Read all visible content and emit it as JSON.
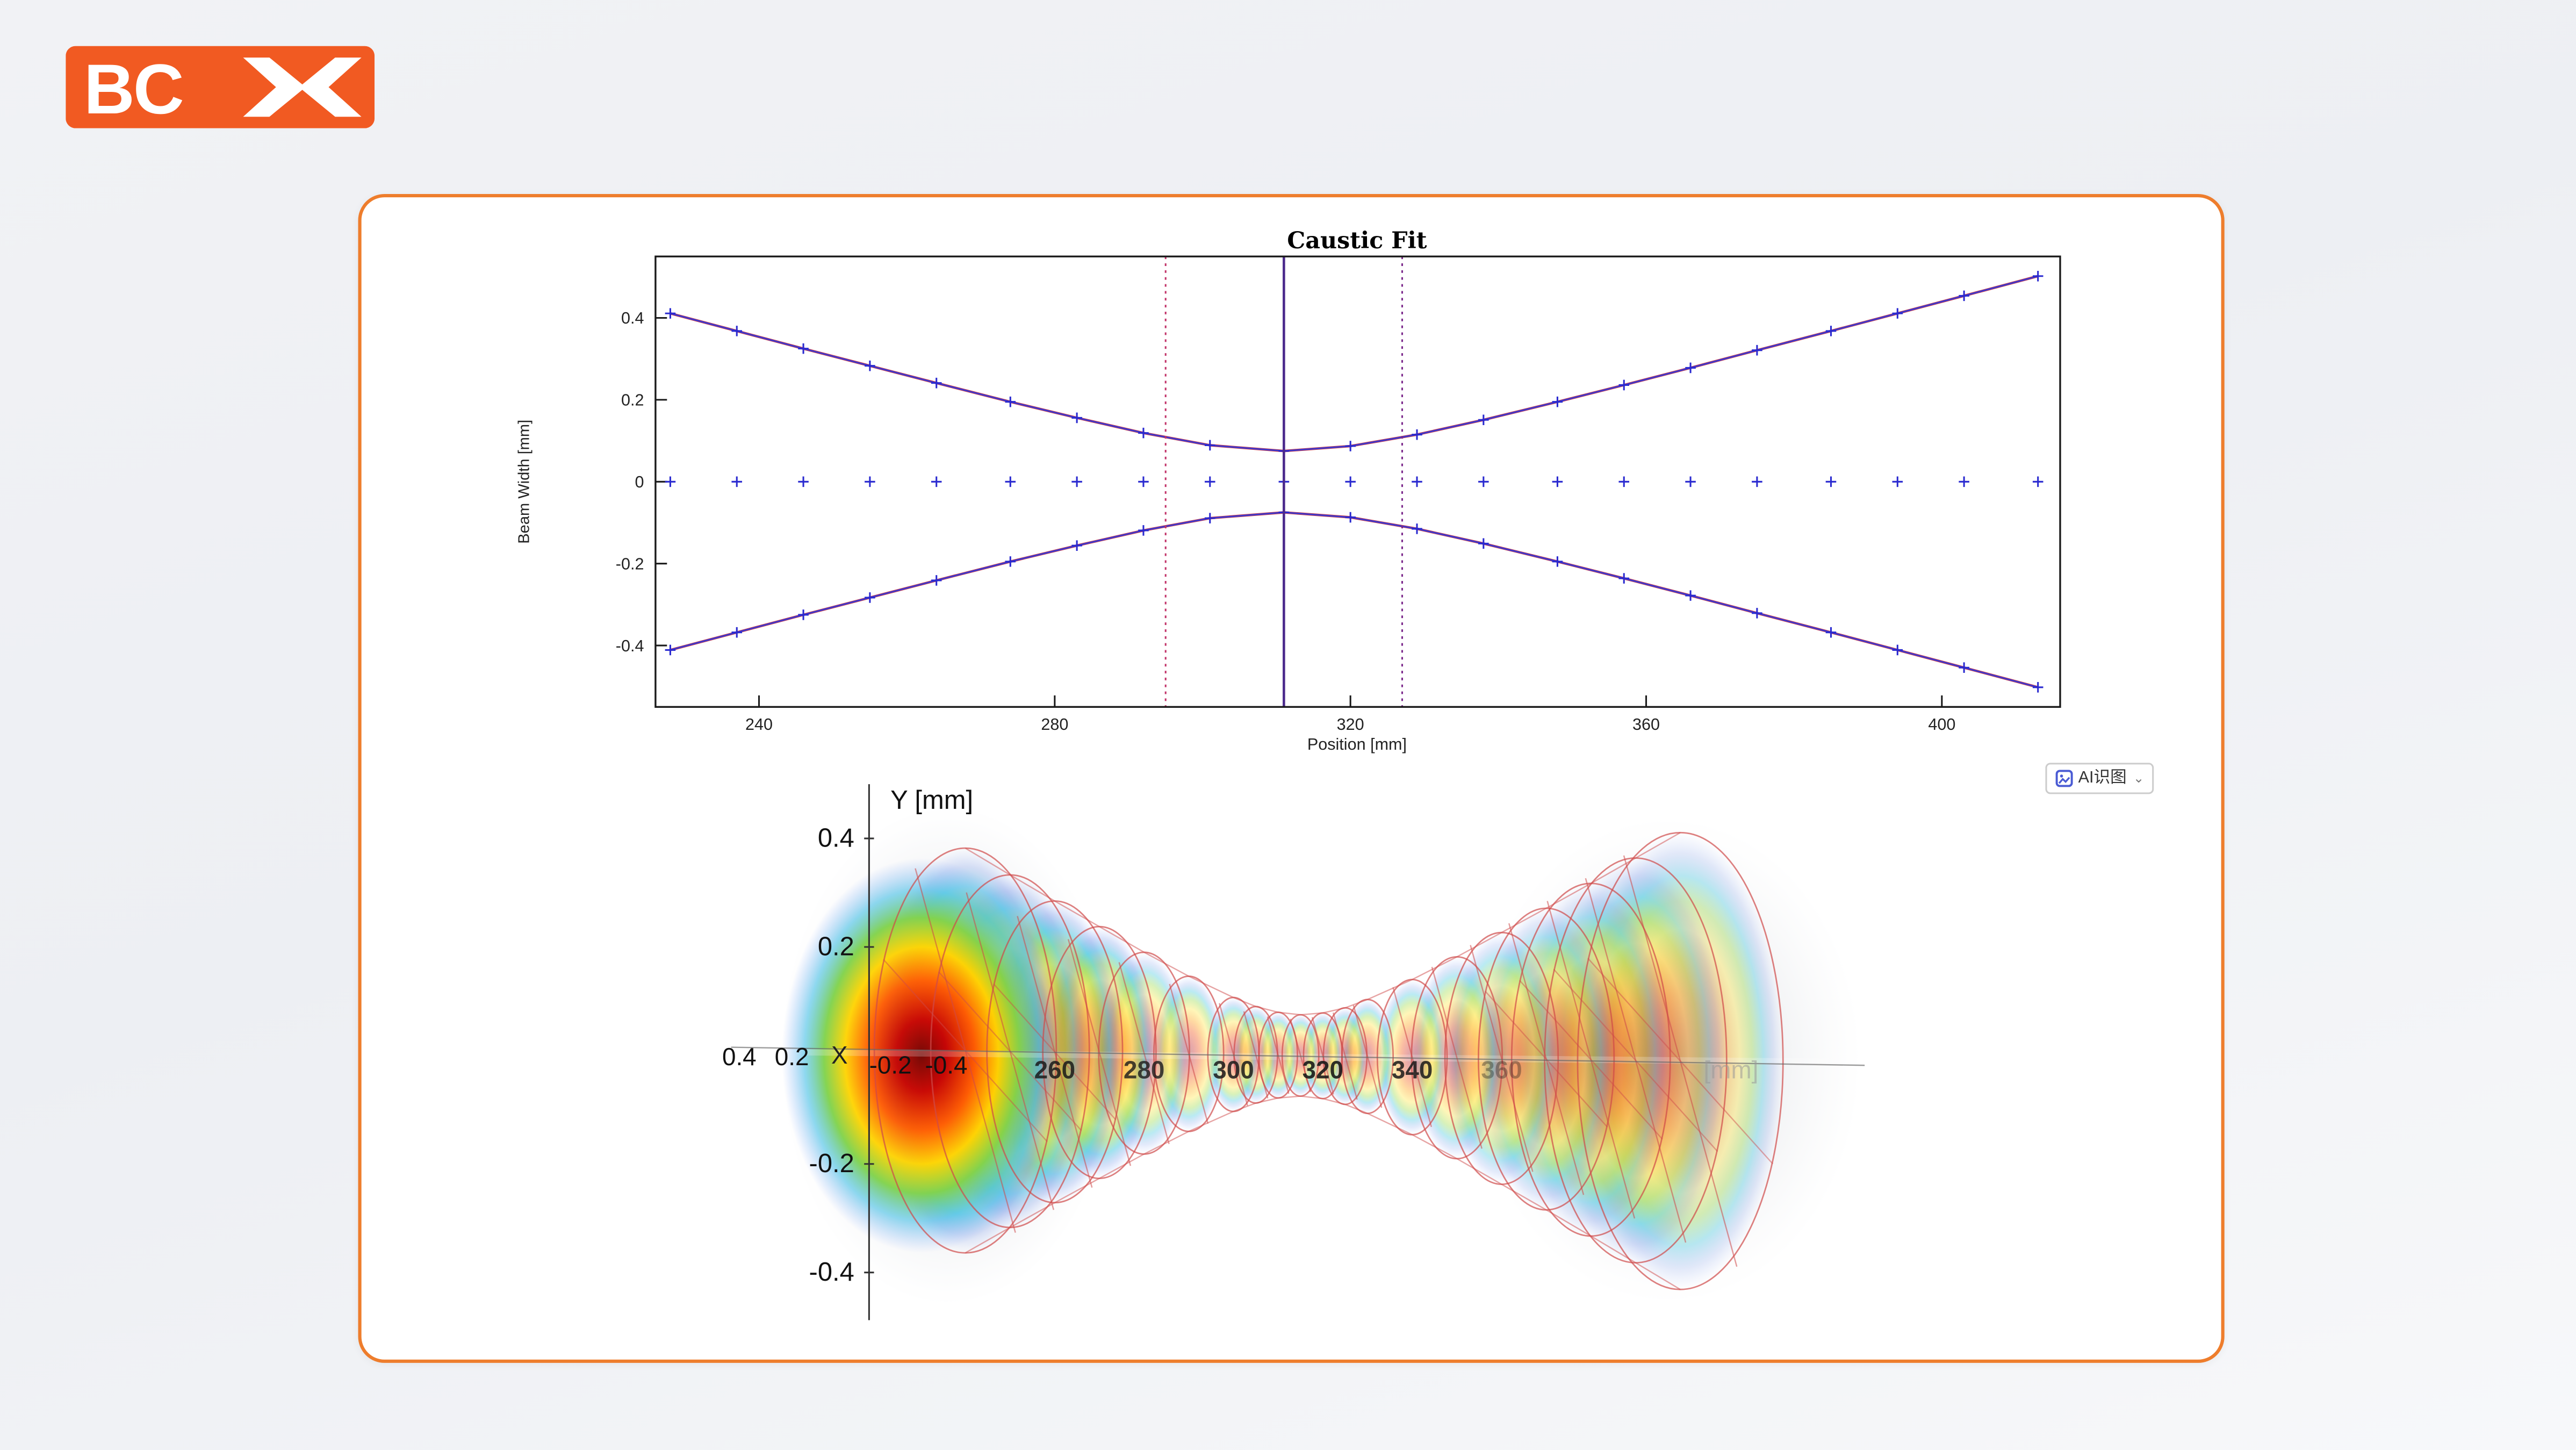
{
  "page": {
    "background_top": "#f1f2f5",
    "background_bottom": "#f7f8fa"
  },
  "logo": {
    "text": "BC",
    "mark": "double-chevron-x",
    "bg_color": "#F15A22",
    "fg_color": "#FFFFFF"
  },
  "card": {
    "border_color": "#EE7D2C"
  },
  "ai_tool_button": {
    "label": "AI识图",
    "caret": "⌄"
  },
  "chart_data": [
    {
      "type": "line",
      "title": "Caustic Fit",
      "xlabel": "Position [mm]",
      "ylabel": "Beam Width [mm]",
      "xlim": [
        226,
        416
      ],
      "ylim": [
        -0.55,
        0.55
      ],
      "x_ticks": [
        240,
        280,
        320,
        360,
        400
      ],
      "y_ticks": [
        0.4,
        0.2,
        0,
        -0.2,
        -0.4
      ],
      "grid": false,
      "legend": "none",
      "line_color": "#3a3ad0",
      "fit_color": "#c22033",
      "marker_color": "#2a2ad0",
      "marker": "+",
      "series": [
        {
          "name": "upper-beam-edge",
          "draw_line": true,
          "x": [
            228,
            237,
            246,
            255,
            264,
            274,
            283,
            292,
            301,
            311,
            320,
            329,
            338,
            348,
            357,
            366,
            375,
            385,
            394,
            403,
            413
          ],
          "y": [
            0.411,
            0.368,
            0.325,
            0.283,
            0.241,
            0.195,
            0.156,
            0.119,
            0.089,
            0.075,
            0.087,
            0.115,
            0.151,
            0.195,
            0.236,
            0.278,
            0.321,
            0.368,
            0.411,
            0.454,
            0.502
          ]
        },
        {
          "name": "lower-beam-edge",
          "draw_line": true,
          "x": [
            228,
            237,
            246,
            255,
            264,
            274,
            283,
            292,
            301,
            311,
            320,
            329,
            338,
            348,
            357,
            366,
            375,
            385,
            394,
            403,
            413
          ],
          "y": [
            -0.411,
            -0.368,
            -0.325,
            -0.283,
            -0.241,
            -0.195,
            -0.156,
            -0.119,
            -0.089,
            -0.075,
            -0.087,
            -0.115,
            -0.151,
            -0.195,
            -0.236,
            -0.278,
            -0.321,
            -0.368,
            -0.411,
            -0.454,
            -0.502
          ]
        },
        {
          "name": "beam-axis",
          "draw_line": false,
          "x": [
            228,
            237,
            246,
            255,
            264,
            274,
            283,
            292,
            301,
            311,
            320,
            329,
            338,
            348,
            357,
            366,
            375,
            385,
            394,
            403,
            413
          ],
          "y": [
            0,
            0,
            0,
            0,
            0,
            0,
            0,
            0,
            0,
            0,
            0,
            0,
            0,
            0,
            0,
            0,
            0,
            0,
            0,
            0,
            0
          ]
        }
      ],
      "vlines": [
        {
          "x": 295,
          "style": "dotted",
          "color": "#c2356a"
        },
        {
          "x": 311,
          "style": "solid",
          "color": "#4b2a8c"
        },
        {
          "x": 327,
          "style": "dotted",
          "color": "#7c2a8c"
        }
      ]
    },
    {
      "type": "area",
      "y_axis_label": "Y [mm]",
      "x_axis_label": "X",
      "z_unit": "[mm]",
      "y_ticks": [
        0.4,
        0.2,
        -0.2,
        -0.4
      ],
      "x_ticks": [
        0.4,
        0.2,
        -0.2,
        -0.4
      ],
      "z_ticks": [
        260,
        280,
        300,
        320,
        340,
        360
      ],
      "waist_position_mm": 315,
      "waist_radius_mm": 0.075,
      "slices": {
        "z": [
          240,
          250,
          260,
          270,
          280,
          290,
          300,
          305,
          310,
          315,
          320,
          325,
          330,
          340,
          350,
          360,
          370,
          380,
          390,
          400
        ],
        "w": [
          0.373,
          0.325,
          0.278,
          0.232,
          0.186,
          0.143,
          0.105,
          0.089,
          0.079,
          0.075,
          0.079,
          0.089,
          0.105,
          0.143,
          0.186,
          0.232,
          0.278,
          0.325,
          0.373,
          0.421
        ]
      }
    }
  ]
}
